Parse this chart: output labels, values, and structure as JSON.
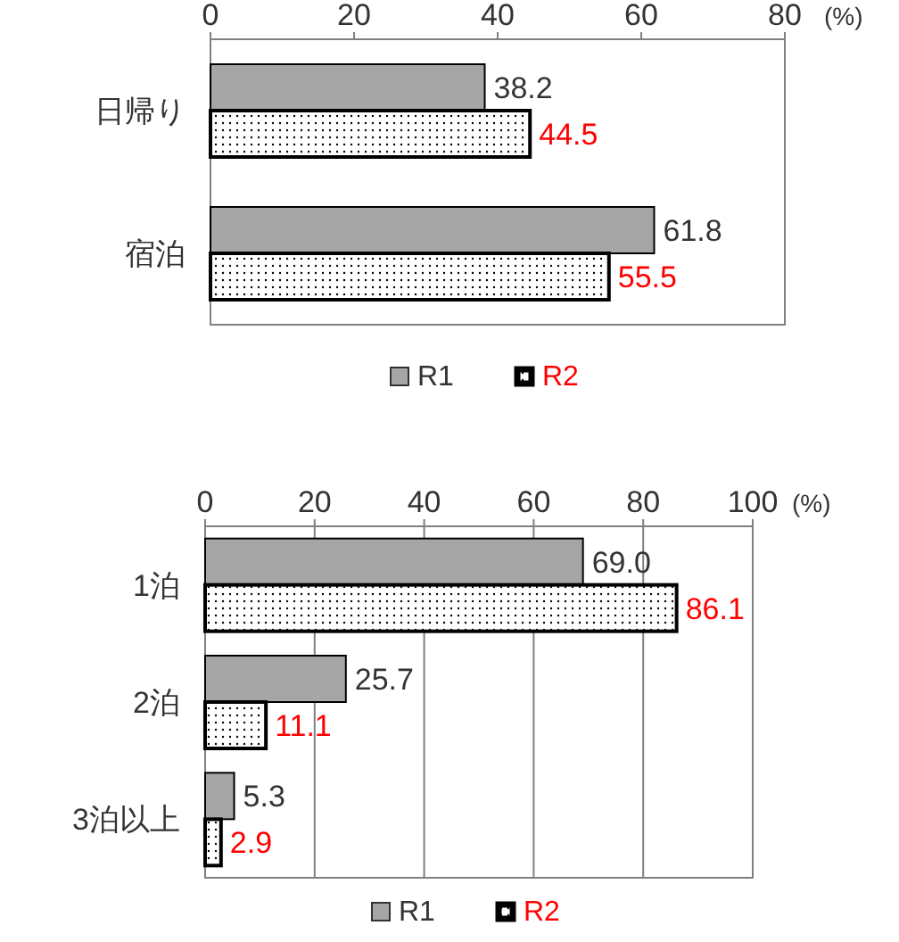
{
  "chart_data": [
    {
      "type": "bar",
      "orientation": "horizontal",
      "xlabel": "(%)",
      "categories": [
        "日帰り",
        "宿泊"
      ],
      "xlim": [
        0,
        80
      ],
      "xticks": [
        0,
        20,
        40,
        60,
        80
      ],
      "data_labels": true,
      "legend": "bottom",
      "series": [
        {
          "name": "R1",
          "color": "#a6a6a6",
          "values": [
            38.2,
            61.8
          ]
        },
        {
          "name": "R2",
          "color": "#000000",
          "values": [
            44.5,
            55.5
          ]
        }
      ]
    },
    {
      "type": "bar",
      "orientation": "horizontal",
      "xlabel": "(%)",
      "categories": [
        "1泊",
        "2泊",
        "3泊以上"
      ],
      "xlim": [
        0,
        100
      ],
      "xticks": [
        0,
        20,
        40,
        60,
        80,
        100
      ],
      "grid": "x",
      "legend": "bottom",
      "series": [
        {
          "name": "R1",
          "color": "#a6a6a6",
          "values": [
            69.0,
            25.7,
            5.3
          ],
          "value_labels": [
            "69.0",
            "25.7",
            "5.3"
          ]
        },
        {
          "name": "R2",
          "color": "#000000",
          "values": [
            86.1,
            11.1,
            2.9
          ],
          "value_labels": [
            "86.1",
            "11.1",
            "2.9"
          ]
        }
      ]
    }
  ]
}
